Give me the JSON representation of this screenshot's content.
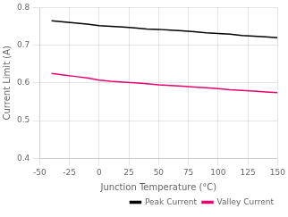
{
  "chart_data": {
    "type": "line",
    "xlabel": "Junction Temperature (°C)",
    "ylabel": "Current Limit (A)",
    "x": [
      -40,
      -30,
      -20,
      -10,
      0,
      10,
      20,
      30,
      40,
      50,
      60,
      70,
      80,
      90,
      100,
      110,
      120,
      130,
      140,
      150
    ],
    "series": [
      {
        "name": "Peak Current",
        "color": "#000000",
        "values": [
          0.765,
          0.762,
          0.759,
          0.756,
          0.752,
          0.75,
          0.748,
          0.746,
          0.743,
          0.742,
          0.74,
          0.738,
          0.736,
          0.733,
          0.731,
          0.729,
          0.726,
          0.724,
          0.722,
          0.72
        ]
      },
      {
        "name": "Valley Current",
        "color": "#e8006e",
        "values": [
          0.625,
          0.621,
          0.617,
          0.613,
          0.607,
          0.604,
          0.602,
          0.6,
          0.598,
          0.595,
          0.593,
          0.591,
          0.589,
          0.587,
          0.585,
          0.582,
          0.58,
          0.578,
          0.576,
          0.574
        ]
      }
    ],
    "xlim": [
      -50,
      150
    ],
    "ylim": [
      0.4,
      0.8
    ],
    "xticks": [
      -50,
      -25,
      0,
      25,
      50,
      75,
      100,
      125,
      150
    ],
    "yticks": [
      0.4,
      0.5,
      0.6,
      0.7,
      0.8
    ],
    "grid": true,
    "legend": "lower right"
  }
}
